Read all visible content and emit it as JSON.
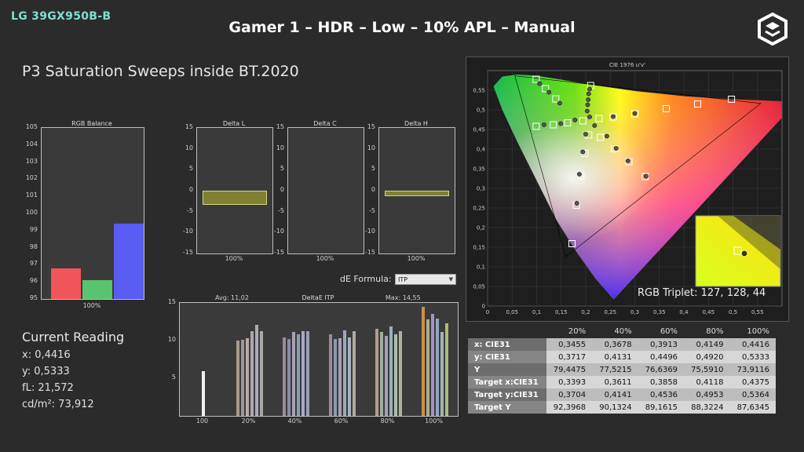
{
  "header": {
    "model": "LG 39GX950B-B",
    "title": "Gamer 1 – HDR – Low – 10% APL – Manual",
    "subtitle": "P3 Saturation Sweeps inside BT.2020"
  },
  "current_reading": {
    "heading": "Current Reading",
    "x": "x: 0,4416",
    "y": "y: 0,5333",
    "fL": "fL: 21,572",
    "cdm2": "cd/m²: 73,912"
  },
  "de_formula": {
    "label": "dE Formula:",
    "value": "ITP"
  },
  "rgb_triplet": "RGB Triplet: 127, 128, 44",
  "chart_data": [
    {
      "id": "rgb-balance",
      "type": "bar",
      "title": "RGB Balance",
      "categories": [
        "100%"
      ],
      "series": [
        {
          "name": "R",
          "values": [
            96.8
          ]
        },
        {
          "name": "G",
          "values": [
            96.1
          ]
        },
        {
          "name": "B",
          "values": [
            99.4
          ]
        }
      ],
      "ylim": [
        95,
        105
      ],
      "yticks": [
        "105",
        "104",
        "103",
        "102",
        "101",
        "100",
        "99",
        "98",
        "97",
        "96",
        "95"
      ],
      "colors": [
        "#f0555a",
        "#58c46e",
        "#5a5cf2"
      ]
    },
    {
      "id": "delta-l",
      "type": "bar",
      "title": "Delta L",
      "categories": [
        "100%"
      ],
      "values": [
        -3.4
      ],
      "ylim": [
        -15,
        15
      ],
      "yticks": [
        "15",
        "10",
        "5",
        "0",
        "-5",
        "-10",
        "-15"
      ],
      "color": "#808033"
    },
    {
      "id": "delta-c",
      "type": "bar",
      "title": "Delta C",
      "categories": [
        "100%"
      ],
      "values": [
        0
      ],
      "ylim": [
        -15,
        15
      ],
      "yticks": [
        "15",
        "10",
        "5",
        "0",
        "-5",
        "-10",
        "-15"
      ],
      "color": "#808033"
    },
    {
      "id": "delta-h",
      "type": "bar",
      "title": "Delta H",
      "categories": [
        "100%"
      ],
      "values": [
        -1.3
      ],
      "ylim": [
        -15,
        15
      ],
      "yticks": [
        "15",
        "10",
        "5",
        "0",
        "-5",
        "-10",
        "-15"
      ],
      "color": "#808033"
    },
    {
      "id": "deltae-itp",
      "type": "bar",
      "title": "DeltaE ITP",
      "avg_label": "Avg: 11,02",
      "max_label": "Max: 14,55",
      "categories": [
        "100",
        "20%",
        "40%",
        "60%",
        "80%",
        "100%"
      ],
      "groups": [
        [
          5.9
        ],
        [
          10.0,
          10.1,
          10.3,
          11.2,
          12.1,
          11.3
        ],
        [
          10.4,
          10.2,
          11.1,
          10.8,
          11.2,
          11.2
        ],
        [
          10.8,
          10.2,
          10.3,
          11.4,
          10.4,
          11.2
        ],
        [
          11.6,
          11.1,
          10.6,
          11.9,
          10.8,
          11.2
        ],
        [
          14.5,
          12.8,
          13.5,
          12.9,
          11.1,
          12.3
        ]
      ],
      "group_colors": [
        [
          "#f0f0f0"
        ],
        [
          "#a89a8e",
          "#9a9a9a",
          "#c0a8a8",
          "#a8a8b6",
          "#b0a8b4",
          "#a8a8a8"
        ],
        [
          "#9a8aa0",
          "#8a8aa8",
          "#a8a0b4",
          "#8a9ab0",
          "#a8a8c8",
          "#9aa0b0"
        ],
        [
          "#a08a9a",
          "#8a9ab0",
          "#a8a0b4",
          "#9aa8c0",
          "#a8b0c0",
          "#b0a8a0"
        ],
        [
          "#b89a8a",
          "#9ab09a",
          "#a8a0b4",
          "#9ab0c0",
          "#a8c0a8",
          "#b0b0a0"
        ],
        [
          "#c89048",
          "#a8b090",
          "#a890c8",
          "#90a8c0",
          "#a8b0b0",
          "#a8c070"
        ]
      ],
      "ylim": [
        0,
        15
      ],
      "yticks": [
        "15",
        "10",
        "5"
      ]
    },
    {
      "id": "cie-1976",
      "type": "scatter",
      "title": "CIE 1976 u'v'",
      "xlim": [
        0,
        0.6
      ],
      "ylim": [
        0,
        0.6
      ],
      "xticks": [
        "0",
        "0,05",
        "0,1",
        "0,15",
        "0,2",
        "0,25",
        "0,3",
        "0,35",
        "0,4",
        "0,45",
        "0,5",
        "0,55"
      ],
      "yticks": [
        "0,55",
        "0,5",
        "0,45",
        "0,4",
        "0,35",
        "0,3",
        "0,25",
        "0,2",
        "0,15",
        "0,1",
        "0,05",
        "0"
      ],
      "bt2020_triangle": [
        [
          0.5566,
          0.5165
        ],
        [
          0.0556,
          0.5868
        ],
        [
          0.1593,
          0.1258
        ]
      ],
      "targets": [
        [
          0.099,
          0.578
        ],
        [
          0.118,
          0.554
        ],
        [
          0.139,
          0.528
        ],
        [
          0.099,
          0.458
        ],
        [
          0.134,
          0.462
        ],
        [
          0.163,
          0.467
        ],
        [
          0.194,
          0.472
        ],
        [
          0.21,
          0.562
        ],
        [
          0.206,
          0.436
        ],
        [
          0.198,
          0.389
        ],
        [
          0.19,
          0.332
        ],
        [
          0.181,
          0.257
        ],
        [
          0.172,
          0.159
        ],
        [
          0.227,
          0.478
        ],
        [
          0.256,
          0.482
        ],
        [
          0.3,
          0.49
        ],
        [
          0.364,
          0.503
        ],
        [
          0.428,
          0.515
        ],
        [
          0.497,
          0.527
        ],
        [
          0.23,
          0.43
        ],
        [
          0.259,
          0.401
        ],
        [
          0.288,
          0.368
        ],
        [
          0.321,
          0.33
        ]
      ],
      "measured": [
        [
          0.106,
          0.567
        ],
        [
          0.125,
          0.545
        ],
        [
          0.147,
          0.517
        ],
        [
          0.115,
          0.462
        ],
        [
          0.149,
          0.465
        ],
        [
          0.178,
          0.474
        ],
        [
          0.208,
          0.553
        ],
        [
          0.206,
          0.541
        ],
        [
          0.205,
          0.526
        ],
        [
          0.204,
          0.513
        ],
        [
          0.203,
          0.497
        ],
        [
          0.208,
          0.482
        ],
        [
          0.2,
          0.438
        ],
        [
          0.194,
          0.393
        ],
        [
          0.187,
          0.336
        ],
        [
          0.182,
          0.262
        ],
        [
          0.218,
          0.46
        ],
        [
          0.243,
          0.433
        ],
        [
          0.262,
          0.402
        ],
        [
          0.286,
          0.37
        ],
        [
          0.323,
          0.331
        ],
        [
          0.256,
          0.483
        ],
        [
          0.3,
          0.491
        ]
      ]
    }
  ],
  "table": {
    "headers": [
      "",
      "20%",
      "40%",
      "60%",
      "80%",
      "100%"
    ],
    "rows": [
      [
        "x: CIE31",
        "0,3455",
        "0,3678",
        "0,3913",
        "0,4149",
        "0,4416"
      ],
      [
        "y: CIE31",
        "0,3717",
        "0,4131",
        "0,4496",
        "0,4920",
        "0,5333"
      ],
      [
        "Y",
        "79,4475",
        "77,5215",
        "76,6369",
        "75,5910",
        "73,9116"
      ],
      [
        "Target x:CIE31",
        "0,3393",
        "0,3611",
        "0,3858",
        "0,4118",
        "0,4375"
      ],
      [
        "Target y:CIE31",
        "0,3704",
        "0,4141",
        "0,4536",
        "0,4953",
        "0,5364"
      ],
      [
        "Target Y",
        "92,3968",
        "90,1324",
        "89,1615",
        "88,3224",
        "87,6345"
      ]
    ]
  }
}
